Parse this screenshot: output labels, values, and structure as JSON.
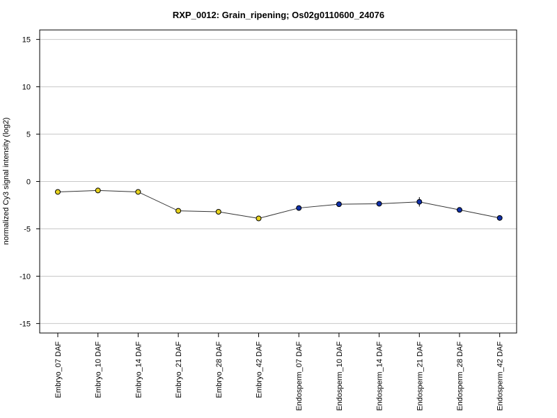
{
  "chart_data": {
    "type": "line",
    "title": "RXP_0012: Grain_ripening; Os02g0110600_24076",
    "xlabel": "",
    "ylabel": "normalized Cy3 signal intensity (log2)",
    "ylim": [
      -16,
      16
    ],
    "yticks": [
      -15,
      -10,
      -5,
      0,
      5,
      10,
      15
    ],
    "grid": true,
    "legend": "none",
    "categories": [
      "Embryo_07 DAF",
      "Embryo_10 DAF",
      "Embryo_14 DAF",
      "Embryo_21 DAF",
      "Embryo_28 DAF",
      "Embryo_42 DAF",
      "Endosperm_07 DAF",
      "Endosperm_10 DAF",
      "Endosperm_14 DAF",
      "Endosperm_21 DAF",
      "Endosperm_28 DAF",
      "Endosperm_42 DAF"
    ],
    "series": [
      {
        "values": [
          -1.1,
          -0.95,
          -1.1,
          -3.1,
          -3.2,
          -3.9,
          -2.8,
          -2.4,
          -2.35,
          -2.15,
          -3.0,
          -3.85
        ],
        "errors": [
          0.15,
          0.15,
          0.15,
          0.25,
          0.1,
          0.15,
          0.15,
          0.1,
          0.1,
          0.5,
          0.1,
          0.1
        ],
        "point_colors": [
          "#e6d21f",
          "#e6d21f",
          "#e6d21f",
          "#e6d21f",
          "#e6d21f",
          "#e6d21f",
          "#1030a8",
          "#1030a8",
          "#1030a8",
          "#1030a8",
          "#1030a8",
          "#1030a8"
        ]
      }
    ],
    "colors": {
      "line": "#333333",
      "grid": "#c8c8c8",
      "embryo_point": "#e6d21f",
      "endosperm_point": "#1030a8"
    }
  }
}
